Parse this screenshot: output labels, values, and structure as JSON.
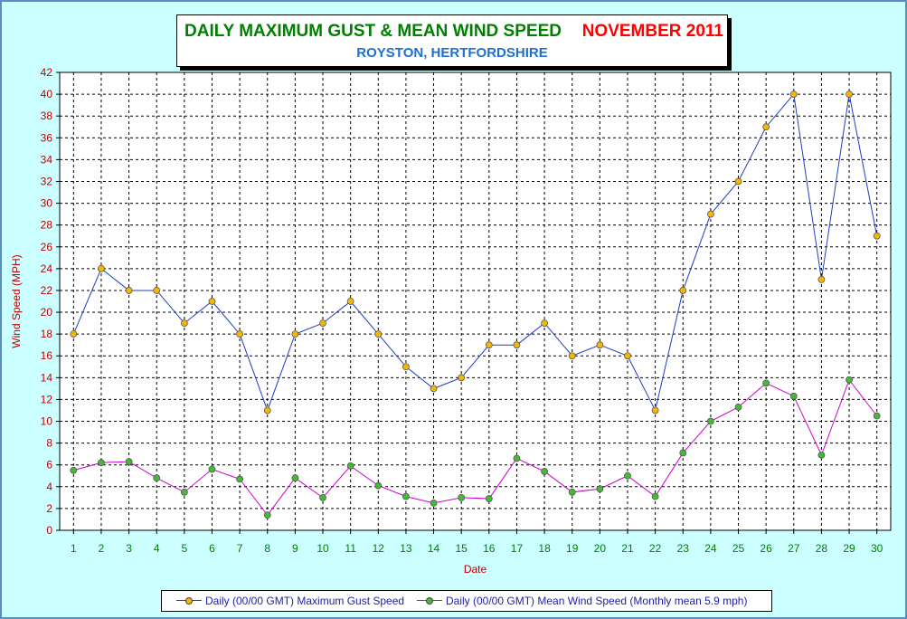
{
  "chart_data": {
    "type": "line",
    "title": "DAILY MAXIMUM GUST & MEAN WIND SPEED",
    "title_date": "NOVEMBER 2011",
    "subtitle": "ROYSTON, HERTFORDSHIRE",
    "xlabel": "Date",
    "ylabel": "Wind Speed (MPH)",
    "ylim": [
      0,
      42
    ],
    "ytick_step": 2,
    "grid": true,
    "legend_position": "bottom",
    "x": [
      1,
      2,
      3,
      4,
      5,
      6,
      7,
      8,
      9,
      10,
      11,
      12,
      13,
      14,
      15,
      16,
      17,
      18,
      19,
      20,
      21,
      22,
      23,
      24,
      25,
      26,
      27,
      28,
      29,
      30
    ],
    "series": [
      {
        "name": "Daily (00/00 GMT) Maximum Gust Speed",
        "color": "#1f3fbf",
        "marker_color": "#f5b800",
        "values": [
          18,
          24,
          22,
          22,
          19,
          21,
          18,
          11,
          18,
          19,
          21,
          18,
          15,
          13,
          14,
          17,
          17,
          19,
          16,
          17,
          16,
          11,
          22,
          29,
          32,
          37,
          40,
          23,
          40,
          27
        ]
      },
      {
        "name": "Daily (00/00 GMT) Mean Wind Speed (Monthly mean 5.9 mph)",
        "color": "#cc00cc",
        "marker_color": "#44bb33",
        "values": [
          5.5,
          6.2,
          6.3,
          4.8,
          3.5,
          5.6,
          4.7,
          1.4,
          4.8,
          3.0,
          5.9,
          4.1,
          3.1,
          2.5,
          3.0,
          2.9,
          6.6,
          5.4,
          3.5,
          3.8,
          5.0,
          3.1,
          7.1,
          10.0,
          11.3,
          13.5,
          12.3,
          6.9,
          13.8,
          10.5
        ]
      }
    ]
  },
  "colors": {
    "background": "#ccffff",
    "axis_text": "#c00000",
    "x_tick_text": "#008000",
    "title_green": "#008000",
    "title_red": "#ff0000",
    "subtitle_blue": "#1f6fd1"
  }
}
